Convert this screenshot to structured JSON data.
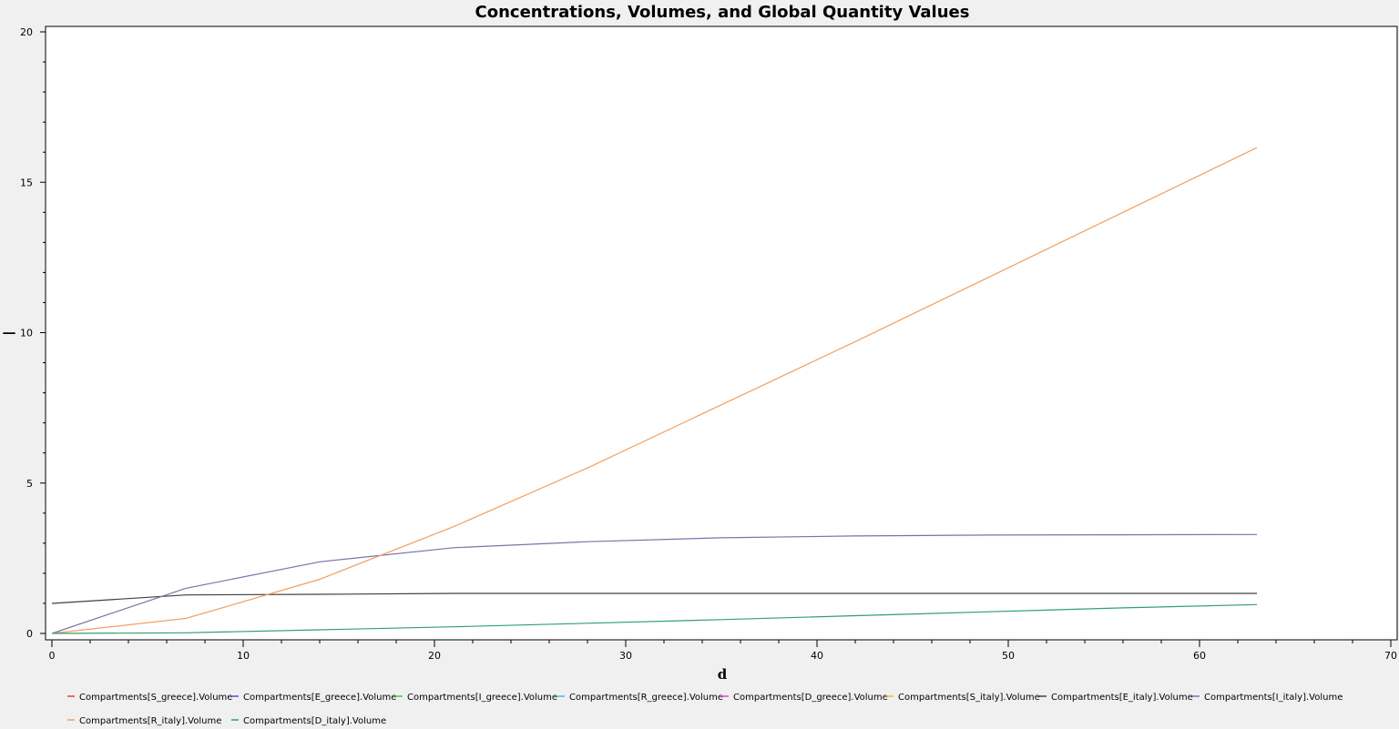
{
  "chart_data": {
    "type": "line",
    "title": "Concentrations, Volumes, and Global Quantity Values",
    "xlabel": "d",
    "ylabel": "—",
    "xlim": [
      0,
      70
    ],
    "ylim": [
      0,
      20
    ],
    "xticks": [
      0,
      10,
      20,
      30,
      40,
      50,
      60,
      70
    ],
    "yticks": [
      0,
      5,
      10,
      15,
      20
    ],
    "grid": false,
    "legend_position": "bottom",
    "series": [
      {
        "name": "Compartments[S_greece].Volume",
        "color": "#e04040",
        "x": [],
        "y": []
      },
      {
        "name": "Compartments[E_greece].Volume",
        "color": "#5050e0",
        "x": [],
        "y": []
      },
      {
        "name": "Compartments[I_greece].Volume",
        "color": "#40d040",
        "x": [],
        "y": []
      },
      {
        "name": "Compartments[R_greece].Volume",
        "color": "#40c0e0",
        "x": [],
        "y": []
      },
      {
        "name": "Compartments[D_greece].Volume",
        "color": "#e040e0",
        "x": [],
        "y": []
      },
      {
        "name": "Compartments[S_italy].Volume",
        "color": "#e0c040",
        "x": [],
        "y": []
      },
      {
        "name": "Compartments[E_italy].Volume",
        "color": "#404040",
        "x": [
          0,
          7,
          14,
          21,
          28,
          35,
          42,
          49,
          56,
          63
        ],
        "y": [
          1.0,
          1.28,
          1.3,
          1.33,
          1.33,
          1.33,
          1.33,
          1.33,
          1.33,
          1.33
        ]
      },
      {
        "name": "Compartments[I_italy].Volume",
        "color": "#8070a8",
        "x": [
          0,
          7,
          14,
          21,
          28,
          35,
          42,
          49,
          56,
          63
        ],
        "y": [
          0,
          1.5,
          2.38,
          2.85,
          3.05,
          3.18,
          3.24,
          3.27,
          3.28,
          3.29
        ]
      },
      {
        "name": "Compartments[R_italy].Volume",
        "color": "#f0a060",
        "x": [
          0,
          7,
          14,
          21,
          28,
          35,
          42,
          49,
          56,
          63
        ],
        "y": [
          0,
          0.5,
          1.8,
          3.55,
          5.5,
          7.6,
          9.7,
          11.85,
          14.0,
          16.15
        ]
      },
      {
        "name": "Compartments[D_italy].Volume",
        "color": "#30a070",
        "x": [
          0,
          7,
          14,
          21,
          28,
          35,
          42,
          49,
          56,
          63
        ],
        "y": [
          0,
          0.02,
          0.12,
          0.22,
          0.34,
          0.46,
          0.59,
          0.72,
          0.85,
          0.96
        ]
      }
    ]
  }
}
